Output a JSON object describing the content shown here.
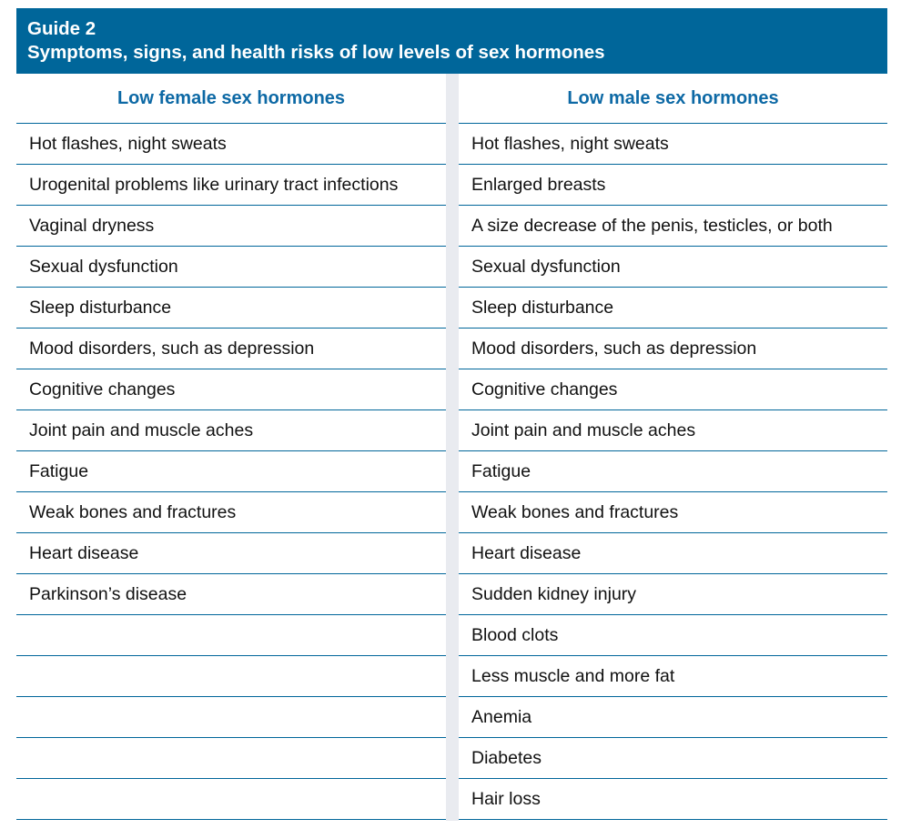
{
  "guide": {
    "number": "Guide 2",
    "title": "Symptoms, signs, and health risks of low levels of sex hormones"
  },
  "columns": {
    "female": {
      "heading": "Low female sex hormones",
      "items": [
        "Hot flashes, night sweats",
        "Urogenital problems like urinary tract infections",
        "Vaginal dryness",
        "Sexual dysfunction",
        "Sleep disturbance",
        "Mood disorders, such as depression",
        "Cognitive changes",
        "Joint pain and muscle aches",
        "Fatigue",
        "Weak bones and fractures",
        "Heart disease",
        "Parkinson’s disease",
        "",
        "",
        "",
        "",
        ""
      ]
    },
    "male": {
      "heading": "Low male sex hormones",
      "items": [
        "Hot flashes, night sweats",
        "Enlarged breasts",
        "A size decrease of the penis, testicles, or both",
        "Sexual dysfunction",
        "Sleep disturbance",
        "Mood disorders, such as depression",
        "Cognitive changes",
        "Joint pain and muscle aches",
        "Fatigue",
        "Weak bones and fractures",
        "Heart disease",
        "Sudden kidney injury",
        "Blood clots",
        "Less muscle and more fat",
        "Anemia",
        "Diabetes",
        "Hair loss"
      ]
    }
  },
  "colors": {
    "header_bg": "#00669a",
    "heading_text": "#0d69a5",
    "rule": "#00669a",
    "gutter": "#e9ebf0"
  }
}
